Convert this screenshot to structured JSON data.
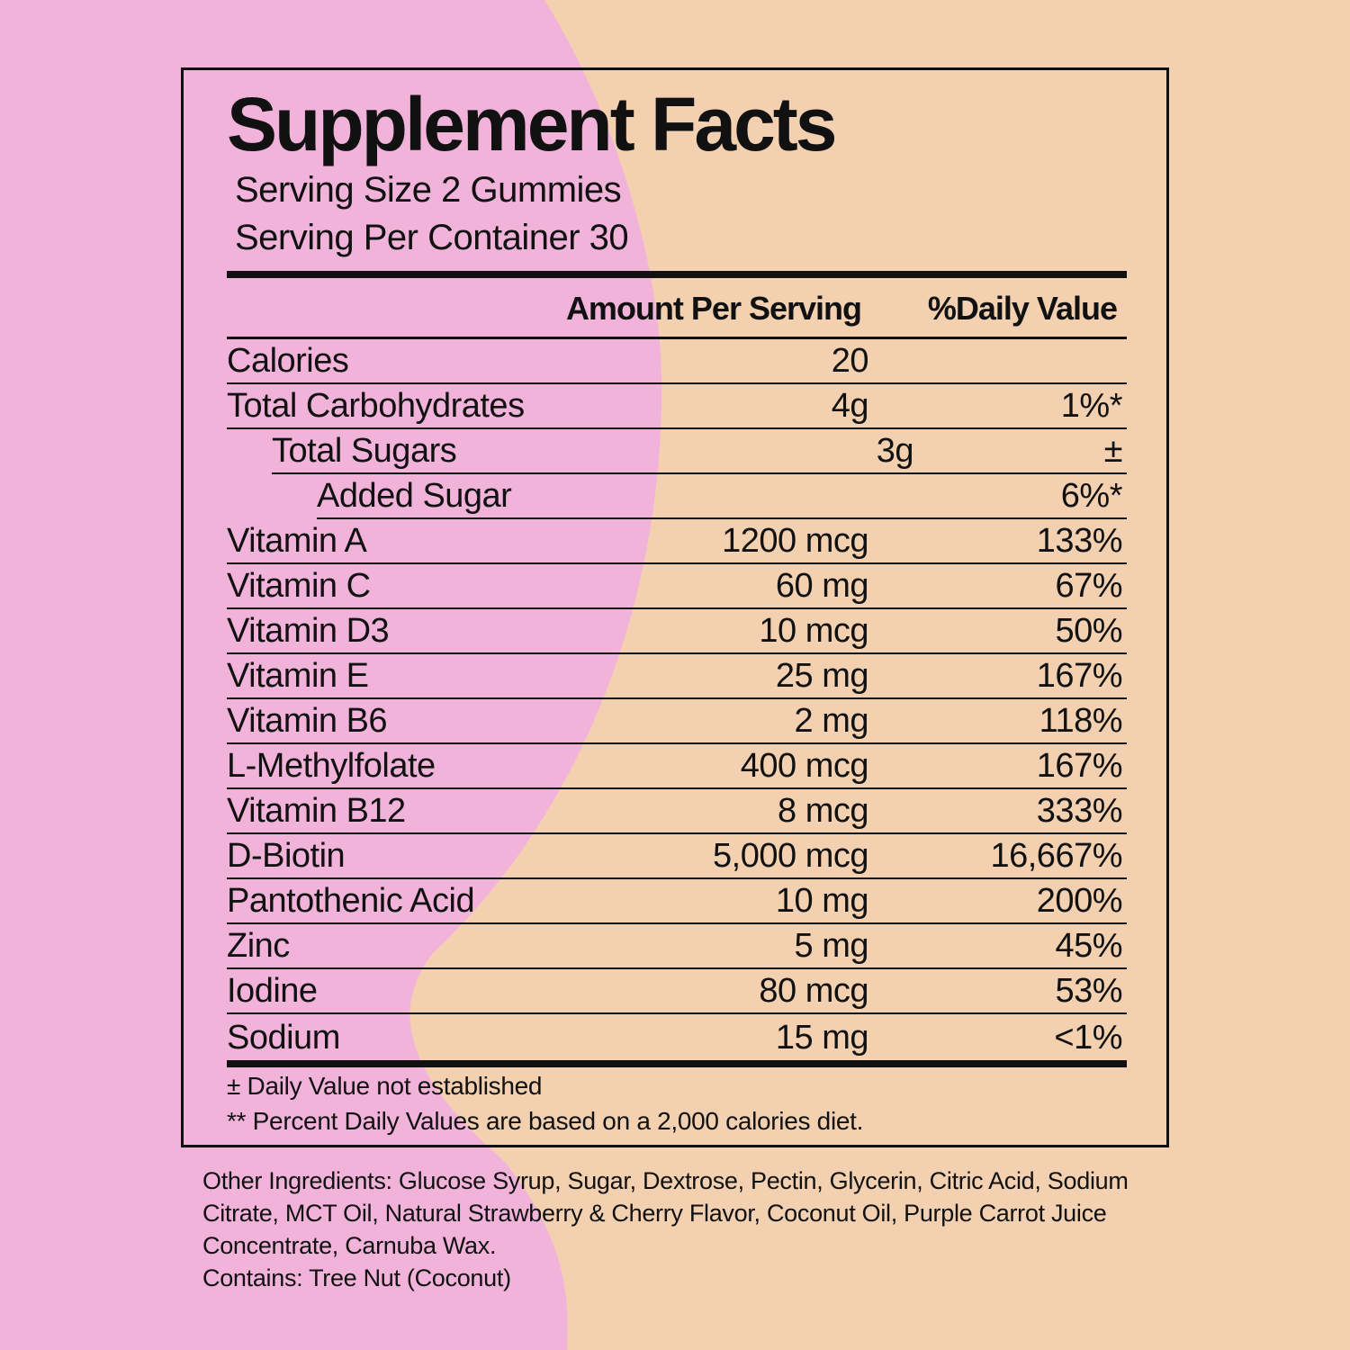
{
  "colors": {
    "pink": "#F2B3DB",
    "peach": "#F2D0B0",
    "ink": "#111111"
  },
  "label": {
    "title": "Supplement Facts",
    "serving_size": "Serving Size 2 Gummies",
    "servings_per_container": "Serving Per Container 30",
    "headers": {
      "amount": "Amount Per Serving",
      "daily_value": "%Daily Value"
    },
    "rows": [
      {
        "name": "Calories",
        "amount": "20",
        "dv": ""
      },
      {
        "name": "Total Carbohydrates",
        "amount": "4g",
        "dv": "1%*"
      },
      {
        "name": "Total Sugars",
        "amount": "3g",
        "dv": "±"
      },
      {
        "name": "Added Sugar",
        "amount": "",
        "dv": "6%*"
      },
      {
        "name": "Vitamin A",
        "amount": "1200 mcg",
        "dv": "133%"
      },
      {
        "name": "Vitamin C",
        "amount": "60 mg",
        "dv": "67%"
      },
      {
        "name": "Vitamin D3",
        "amount": "10 mcg",
        "dv": "50%"
      },
      {
        "name": "Vitamin E",
        "amount": "25 mg",
        "dv": "167%"
      },
      {
        "name": "Vitamin B6",
        "amount": "2 mg",
        "dv": "118%"
      },
      {
        "name": "L-Methylfolate",
        "amount": "400 mcg",
        "dv": "167%"
      },
      {
        "name": "Vitamin B12",
        "amount": "8 mcg",
        "dv": "333%"
      },
      {
        "name": "D-Biotin",
        "amount": "5,000 mcg",
        "dv": "16,667%"
      },
      {
        "name": "Pantothenic Acid",
        "amount": "10 mg",
        "dv": "200%"
      },
      {
        "name": "Zinc",
        "amount": "5 mg",
        "dv": "45%"
      },
      {
        "name": "Iodine",
        "amount": "80 mcg",
        "dv": "53%"
      },
      {
        "name": "Sodium",
        "amount": "15 mg",
        "dv": "<1%"
      }
    ],
    "footnotes": [
      "± Daily Value not established",
      "** Percent Daily Values are based on a 2,000 calories diet."
    ]
  },
  "other_ingredients": "Other Ingredients: Glucose Syrup, Sugar, Dextrose, Pectin, Glycerin, Citric Acid, Sodium Citrate, MCT Oil, Natural Strawberry & Cherry Flavor, Coconut Oil, Purple Carrot Juice Concentrate, Carnuba Wax.",
  "contains": "Contains: Tree Nut (Coconut)"
}
